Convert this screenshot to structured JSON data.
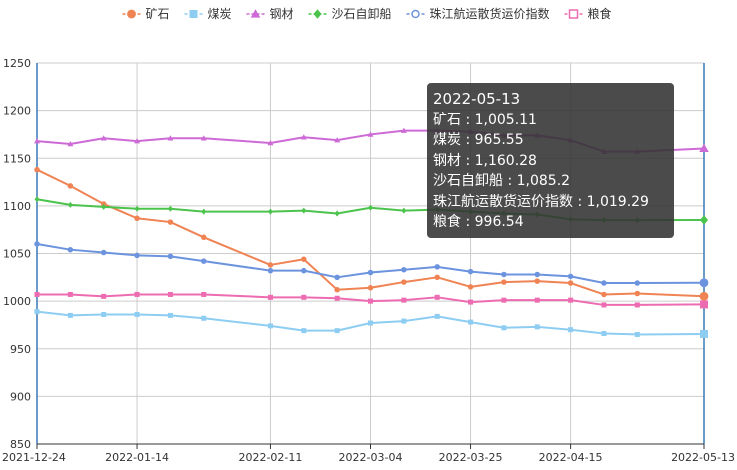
{
  "chart_data": {
    "type": "line",
    "title": "",
    "xlabel": "",
    "ylabel": "",
    "ylim": [
      850,
      1250
    ],
    "y_ticks": [
      850,
      900,
      950,
      1000,
      1050,
      1100,
      1150,
      1200,
      1250
    ],
    "x_tick_labels": [
      "2021-12-24",
      "2022-01-14",
      "2022-02-11",
      "2022-03-04",
      "2022-03-25",
      "2022-04-15",
      "2022-05-13"
    ],
    "x": [
      "2021-12-24",
      "2021-12-31",
      "2022-01-07",
      "2022-01-14",
      "2022-01-21",
      "2022-01-28",
      "2022-02-11",
      "2022-02-18",
      "2022-02-25",
      "2022-03-04",
      "2022-03-11",
      "2022-03-18",
      "2022-03-25",
      "2022-04-01",
      "2022-04-08",
      "2022-04-15",
      "2022-04-22",
      "2022-04-29",
      "2022-05-13"
    ],
    "legend_position": "top",
    "grid": true,
    "series": [
      {
        "name": "矿石",
        "color": "#ef8354",
        "marker": "circle",
        "values": [
          1138,
          1121,
          1102,
          1087,
          1083,
          1067,
          1038,
          1044,
          1012,
          1014,
          1020,
          1025,
          1015,
          1020,
          1021,
          1019,
          1007,
          1008,
          1005.11
        ]
      },
      {
        "name": "煤炭",
        "color": "#8ecdf2",
        "marker": "square",
        "values": [
          989,
          985,
          986,
          986,
          985,
          982,
          974,
          969,
          969,
          977,
          979,
          984,
          978,
          972,
          973,
          970,
          966,
          965,
          965.55
        ]
      },
      {
        "name": "钢材",
        "color": "#cd6ad6",
        "marker": "triangle",
        "values": [
          1168,
          1165,
          1171,
          1168,
          1171,
          1171,
          1166,
          1172,
          1169,
          1175,
          1179,
          1179,
          1178,
          1174,
          1174,
          1169,
          1157,
          1157,
          1160.28
        ]
      },
      {
        "name": "沙石自卸船",
        "color": "#4cc34c",
        "marker": "diamond",
        "values": [
          1107,
          1101,
          1099,
          1097,
          1097,
          1094,
          1094,
          1095,
          1092,
          1098,
          1095,
          1096,
          1094,
          1092,
          1091,
          1086,
          1085,
          1085,
          1085.2
        ]
      },
      {
        "name": "珠江航运散货运价指数",
        "color": "#6c93de",
        "marker": "circle",
        "values": [
          1060,
          1054,
          1051,
          1048,
          1047,
          1042,
          1032,
          1032,
          1025,
          1030,
          1033,
          1036,
          1031,
          1028,
          1028,
          1026,
          1019,
          1019,
          1019.29
        ]
      },
      {
        "name": "粮食",
        "color": "#ed6bb0",
        "marker": "square",
        "values": [
          1007,
          1007,
          1005,
          1007,
          1007,
          1007,
          1004,
          1004,
          1003,
          1000,
          1001,
          1004,
          999,
          1001,
          1001,
          1001,
          996,
          996,
          996.54
        ]
      }
    ],
    "tooltip": {
      "date": "2022-05-13",
      "rows": [
        {
          "label": "矿石",
          "value": "1,005.11"
        },
        {
          "label": "煤炭",
          "value": "965.55"
        },
        {
          "label": "钢材",
          "value": "1,160.28"
        },
        {
          "label": "沙石自卸船",
          "value": "1,085.2"
        },
        {
          "label": "珠江航运散货运价指数",
          "value": "1,019.29"
        },
        {
          "label": "粮食",
          "value": "996.54"
        }
      ]
    }
  }
}
